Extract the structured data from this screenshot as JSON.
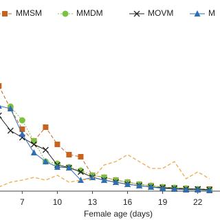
{
  "chart_data": {
    "type": "line",
    "x_label": "Female age (days)",
    "x": [
      5,
      6,
      7,
      8,
      9,
      10,
      11,
      12,
      13,
      14,
      15,
      16,
      17,
      18,
      19,
      20,
      21,
      22,
      23
    ],
    "xlim": [
      5.1,
      23.9
    ],
    "xticks": [
      7,
      10,
      13,
      16,
      19,
      22
    ],
    "ylim": [
      0,
      100
    ],
    "series": [
      {
        "name": "MMSM",
        "color": "#c8621f",
        "marker": "square",
        "dash": "dashed",
        "values": [
          76.5,
          60,
          45,
          36.5,
          46.5,
          34,
          26.5,
          25,
          11.5,
          10,
          8,
          6.5,
          5,
          4,
          3,
          2.5,
          2,
          1.5,
          1.5
        ]
      },
      {
        "name": "MMDM",
        "color": "#7cc242",
        "marker": "circle",
        "dash": "dotted",
        "values": [
          null,
          61.5,
          51.5,
          36.5,
          21.5,
          20,
          17.5,
          15,
          11.5,
          10,
          8,
          6.5,
          5,
          4,
          3,
          2.5,
          2,
          1.5,
          1
        ]
      },
      {
        "name": "MOVM",
        "color": "#222222",
        "marker": "cross",
        "dash": "solid",
        "values": [
          55,
          44,
          39,
          34,
          30,
          19,
          17,
          14,
          10,
          8,
          6.5,
          5,
          4,
          3,
          2.5,
          2,
          1.5,
          1.5,
          1
        ]
      },
      {
        "name": "M",
        "color": "#2f6db5",
        "marker": "triangle",
        "dash": "solid",
        "values": [
          62,
          60,
          41.5,
          28,
          21.5,
          17.5,
          17,
          8,
          10,
          8,
          6.5,
          5,
          4,
          3,
          2,
          1.5,
          1,
          1,
          0.5
        ]
      },
      {
        "color": "#f3a64a",
        "marker": "none",
        "dash": "dashed",
        "values": [
          3,
          6.5,
          8,
          10,
          8,
          11.5,
          6.5,
          8,
          9,
          19,
          21.5,
          26.5,
          21.5,
          16.5,
          16.5,
          21.5,
          9,
          14,
          9
        ]
      }
    ]
  }
}
